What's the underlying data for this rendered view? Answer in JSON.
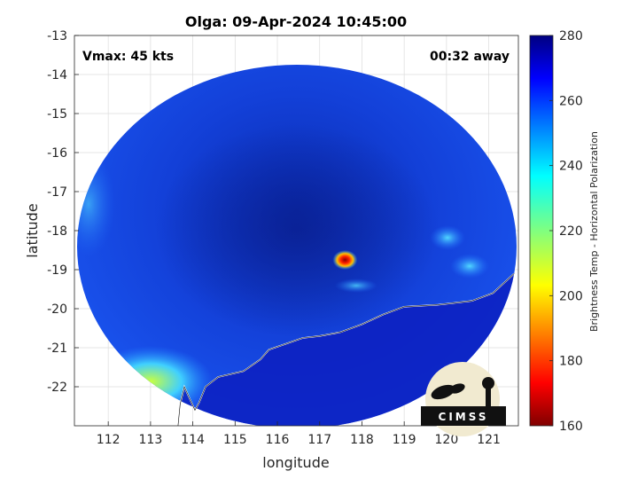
{
  "chart_data": {
    "type": "heatmap",
    "title": "Olga: 09-Apr-2024 10:45:00",
    "xlabel": "longitude",
    "ylabel": "latitude",
    "xlim": [
      111.2,
      121.7
    ],
    "ylim": [
      -23,
      -13
    ],
    "xticks": [
      "112",
      "113",
      "114",
      "115",
      "116",
      "117",
      "118",
      "119",
      "120",
      "121"
    ],
    "xtick_values": [
      112,
      113,
      114,
      115,
      116,
      117,
      118,
      119,
      120,
      121
    ],
    "yticks": [
      "-13",
      "-14",
      "-15",
      "-16",
      "-17",
      "-18",
      "-19",
      "-20",
      "-21",
      "-22"
    ],
    "ytick_values": [
      -13,
      -14,
      -15,
      -16,
      -17,
      -18,
      -19,
      -20,
      -21,
      -22
    ],
    "grid": true,
    "annotations": {
      "vmax": "Vmax: 45 kts",
      "away": "00:32 away"
    },
    "colorbar": {
      "label": "Brightness Temp - Horizontal Polarization",
      "range": [
        160,
        280
      ],
      "ticks": [
        "280",
        "260",
        "240",
        "220",
        "200",
        "180",
        "160"
      ],
      "tick_values": [
        280,
        260,
        240,
        220,
        200,
        180,
        160
      ],
      "colormap": "jet"
    },
    "features": {
      "eye_center": {
        "lon": 117.6,
        "lat": -18.75,
        "tb": 175
      },
      "coastline": [
        [
          121.6,
          -19.1
        ],
        [
          121.1,
          -19.6
        ],
        [
          120.6,
          -19.8
        ],
        [
          119.8,
          -19.9
        ],
        [
          119.0,
          -19.95
        ],
        [
          118.5,
          -20.15
        ],
        [
          118.0,
          -20.4
        ],
        [
          117.5,
          -20.6
        ],
        [
          117.0,
          -20.7
        ],
        [
          116.6,
          -20.75
        ],
        [
          116.2,
          -20.9
        ],
        [
          115.8,
          -21.05
        ],
        [
          115.6,
          -21.3
        ],
        [
          115.2,
          -21.6
        ],
        [
          114.6,
          -21.75
        ],
        [
          114.3,
          -22.0
        ],
        [
          114.15,
          -22.4
        ],
        [
          114.05,
          -22.6
        ],
        [
          113.8,
          -22.0
        ],
        [
          113.7,
          -22.45
        ],
        [
          113.65,
          -23.0
        ]
      ]
    }
  },
  "logo": {
    "text": "CIMSS"
  }
}
